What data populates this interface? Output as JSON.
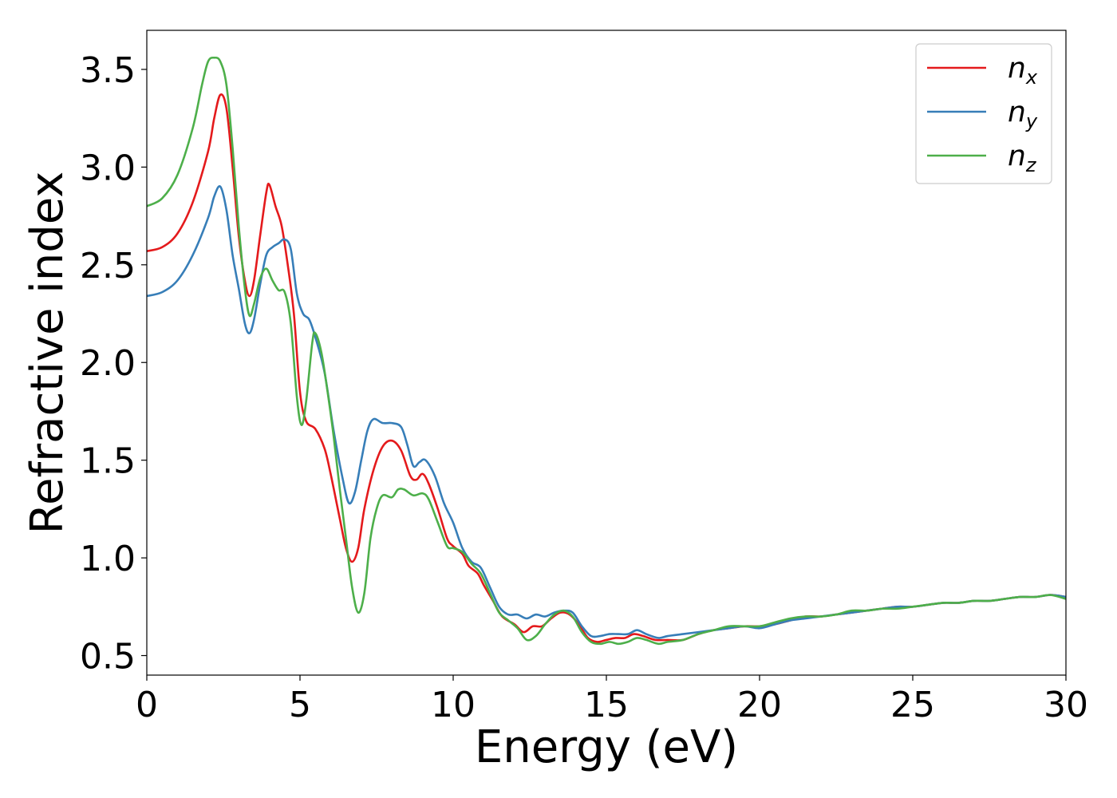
{
  "chart_data": {
    "type": "line",
    "title": "",
    "xlabel": "Energy (eV)",
    "ylabel": "Refractive index",
    "xlim": [
      0,
      30
    ],
    "ylim": [
      0.4,
      3.7
    ],
    "xticks": [
      0,
      5,
      10,
      15,
      20,
      25,
      30
    ],
    "xtick_labels": [
      "0",
      "5",
      "10",
      "15",
      "20",
      "25",
      "30"
    ],
    "yticks": [
      0.5,
      1.0,
      1.5,
      2.0,
      2.5,
      3.0,
      3.5
    ],
    "ytick_labels": [
      "0.5",
      "1.0",
      "1.5",
      "2.0",
      "2.5",
      "3.0",
      "3.5"
    ],
    "grid": false,
    "legend_position": "top-right",
    "series": [
      {
        "name": "n_x",
        "label_main": "n",
        "label_sub": "x",
        "color": "#e41a1c",
        "points": [
          [
            0,
            2.57
          ],
          [
            0.5,
            2.59
          ],
          [
            1.0,
            2.66
          ],
          [
            1.5,
            2.82
          ],
          [
            2.0,
            3.08
          ],
          [
            2.2,
            3.25
          ],
          [
            2.4,
            3.37
          ],
          [
            2.6,
            3.3
          ],
          [
            2.8,
            3.0
          ],
          [
            3.0,
            2.65
          ],
          [
            3.2,
            2.42
          ],
          [
            3.35,
            2.34
          ],
          [
            3.5,
            2.42
          ],
          [
            3.7,
            2.65
          ],
          [
            3.9,
            2.87
          ],
          [
            4.0,
            2.91
          ],
          [
            4.2,
            2.8
          ],
          [
            4.4,
            2.7
          ],
          [
            4.6,
            2.5
          ],
          [
            4.8,
            2.25
          ],
          [
            5.0,
            1.85
          ],
          [
            5.2,
            1.7
          ],
          [
            5.5,
            1.66
          ],
          [
            5.8,
            1.56
          ],
          [
            6.0,
            1.43
          ],
          [
            6.3,
            1.2
          ],
          [
            6.5,
            1.05
          ],
          [
            6.7,
            0.98
          ],
          [
            6.9,
            1.05
          ],
          [
            7.1,
            1.25
          ],
          [
            7.4,
            1.45
          ],
          [
            7.7,
            1.57
          ],
          [
            8.0,
            1.6
          ],
          [
            8.3,
            1.55
          ],
          [
            8.6,
            1.42
          ],
          [
            8.8,
            1.4
          ],
          [
            9.0,
            1.43
          ],
          [
            9.2,
            1.38
          ],
          [
            9.5,
            1.25
          ],
          [
            9.8,
            1.1
          ],
          [
            10.0,
            1.06
          ],
          [
            10.3,
            1.02
          ],
          [
            10.5,
            0.96
          ],
          [
            10.8,
            0.92
          ],
          [
            11.0,
            0.86
          ],
          [
            11.3,
            0.78
          ],
          [
            11.6,
            0.7
          ],
          [
            12.0,
            0.66
          ],
          [
            12.3,
            0.62
          ],
          [
            12.6,
            0.65
          ],
          [
            12.9,
            0.65
          ],
          [
            13.2,
            0.69
          ],
          [
            13.5,
            0.72
          ],
          [
            13.8,
            0.71
          ],
          [
            14.1,
            0.66
          ],
          [
            14.4,
            0.59
          ],
          [
            14.7,
            0.57
          ],
          [
            15.0,
            0.58
          ],
          [
            15.3,
            0.59
          ],
          [
            15.6,
            0.59
          ],
          [
            15.9,
            0.61
          ],
          [
            16.2,
            0.6
          ],
          [
            16.6,
            0.58
          ],
          [
            17.0,
            0.58
          ],
          [
            17.5,
            0.58
          ],
          [
            18.0,
            0.61
          ],
          [
            18.5,
            0.63
          ],
          [
            19.0,
            0.64
          ],
          [
            19.5,
            0.65
          ],
          [
            20.0,
            0.65
          ],
          [
            20.5,
            0.66
          ],
          [
            21.0,
            0.68
          ],
          [
            21.5,
            0.7
          ],
          [
            22.0,
            0.7
          ],
          [
            22.5,
            0.71
          ],
          [
            23.0,
            0.72
          ],
          [
            23.5,
            0.73
          ],
          [
            24.0,
            0.74
          ],
          [
            24.5,
            0.75
          ],
          [
            25.0,
            0.75
          ],
          [
            25.5,
            0.76
          ],
          [
            26.0,
            0.77
          ],
          [
            26.5,
            0.77
          ],
          [
            27.0,
            0.78
          ],
          [
            27.5,
            0.78
          ],
          [
            28.0,
            0.79
          ],
          [
            28.5,
            0.8
          ],
          [
            29.0,
            0.8
          ],
          [
            29.5,
            0.81
          ],
          [
            30.0,
            0.8
          ]
        ]
      },
      {
        "name": "n_y",
        "label_main": "n",
        "label_sub": "y",
        "color": "#377eb8",
        "points": [
          [
            0,
            2.34
          ],
          [
            0.5,
            2.36
          ],
          [
            1.0,
            2.42
          ],
          [
            1.5,
            2.55
          ],
          [
            2.0,
            2.74
          ],
          [
            2.2,
            2.85
          ],
          [
            2.4,
            2.9
          ],
          [
            2.6,
            2.78
          ],
          [
            2.8,
            2.55
          ],
          [
            3.0,
            2.38
          ],
          [
            3.2,
            2.2
          ],
          [
            3.35,
            2.15
          ],
          [
            3.5,
            2.22
          ],
          [
            3.7,
            2.4
          ],
          [
            3.9,
            2.55
          ],
          [
            4.1,
            2.59
          ],
          [
            4.3,
            2.61
          ],
          [
            4.5,
            2.63
          ],
          [
            4.7,
            2.58
          ],
          [
            4.9,
            2.35
          ],
          [
            5.1,
            2.25
          ],
          [
            5.3,
            2.22
          ],
          [
            5.5,
            2.13
          ],
          [
            5.8,
            1.95
          ],
          [
            6.1,
            1.65
          ],
          [
            6.4,
            1.4
          ],
          [
            6.6,
            1.28
          ],
          [
            6.8,
            1.34
          ],
          [
            7.0,
            1.5
          ],
          [
            7.2,
            1.65
          ],
          [
            7.4,
            1.71
          ],
          [
            7.7,
            1.69
          ],
          [
            8.0,
            1.69
          ],
          [
            8.3,
            1.67
          ],
          [
            8.5,
            1.58
          ],
          [
            8.7,
            1.47
          ],
          [
            8.9,
            1.49
          ],
          [
            9.1,
            1.5
          ],
          [
            9.4,
            1.42
          ],
          [
            9.7,
            1.28
          ],
          [
            10.0,
            1.18
          ],
          [
            10.3,
            1.05
          ],
          [
            10.6,
            0.98
          ],
          [
            10.9,
            0.95
          ],
          [
            11.2,
            0.85
          ],
          [
            11.5,
            0.75
          ],
          [
            11.8,
            0.71
          ],
          [
            12.1,
            0.71
          ],
          [
            12.4,
            0.69
          ],
          [
            12.7,
            0.71
          ],
          [
            13.0,
            0.7
          ],
          [
            13.3,
            0.72
          ],
          [
            13.6,
            0.73
          ],
          [
            13.9,
            0.72
          ],
          [
            14.2,
            0.65
          ],
          [
            14.5,
            0.6
          ],
          [
            14.8,
            0.6
          ],
          [
            15.1,
            0.61
          ],
          [
            15.4,
            0.61
          ],
          [
            15.7,
            0.61
          ],
          [
            16.0,
            0.63
          ],
          [
            16.3,
            0.61
          ],
          [
            16.7,
            0.59
          ],
          [
            17.0,
            0.6
          ],
          [
            17.5,
            0.61
          ],
          [
            18.0,
            0.62
          ],
          [
            18.5,
            0.63
          ],
          [
            19.0,
            0.64
          ],
          [
            19.5,
            0.65
          ],
          [
            20.0,
            0.64
          ],
          [
            20.5,
            0.66
          ],
          [
            21.0,
            0.68
          ],
          [
            21.5,
            0.69
          ],
          [
            22.0,
            0.7
          ],
          [
            22.5,
            0.71
          ],
          [
            23.0,
            0.72
          ],
          [
            23.5,
            0.73
          ],
          [
            24.0,
            0.74
          ],
          [
            24.5,
            0.75
          ],
          [
            25.0,
            0.75
          ],
          [
            25.5,
            0.76
          ],
          [
            26.0,
            0.77
          ],
          [
            26.5,
            0.77
          ],
          [
            27.0,
            0.78
          ],
          [
            27.5,
            0.78
          ],
          [
            28.0,
            0.79
          ],
          [
            28.5,
            0.8
          ],
          [
            29.0,
            0.8
          ],
          [
            29.5,
            0.81
          ],
          [
            30.0,
            0.8
          ]
        ]
      },
      {
        "name": "n_z",
        "label_main": "n",
        "label_sub": "z",
        "color": "#4daf4a",
        "points": [
          [
            0,
            2.8
          ],
          [
            0.5,
            2.84
          ],
          [
            1.0,
            2.96
          ],
          [
            1.5,
            3.2
          ],
          [
            1.8,
            3.42
          ],
          [
            2.0,
            3.54
          ],
          [
            2.2,
            3.56
          ],
          [
            2.4,
            3.54
          ],
          [
            2.6,
            3.42
          ],
          [
            2.8,
            3.1
          ],
          [
            3.0,
            2.7
          ],
          [
            3.2,
            2.38
          ],
          [
            3.35,
            2.24
          ],
          [
            3.5,
            2.3
          ],
          [
            3.7,
            2.43
          ],
          [
            3.9,
            2.48
          ],
          [
            4.1,
            2.42
          ],
          [
            4.3,
            2.37
          ],
          [
            4.5,
            2.36
          ],
          [
            4.7,
            2.2
          ],
          [
            4.9,
            1.82
          ],
          [
            5.05,
            1.68
          ],
          [
            5.2,
            1.8
          ],
          [
            5.4,
            2.1
          ],
          [
            5.5,
            2.15
          ],
          [
            5.7,
            2.05
          ],
          [
            5.9,
            1.85
          ],
          [
            6.1,
            1.62
          ],
          [
            6.3,
            1.35
          ],
          [
            6.5,
            1.1
          ],
          [
            6.7,
            0.85
          ],
          [
            6.9,
            0.72
          ],
          [
            7.1,
            0.82
          ],
          [
            7.3,
            1.1
          ],
          [
            7.5,
            1.25
          ],
          [
            7.7,
            1.32
          ],
          [
            8.0,
            1.31
          ],
          [
            8.2,
            1.35
          ],
          [
            8.4,
            1.35
          ],
          [
            8.7,
            1.32
          ],
          [
            9.0,
            1.33
          ],
          [
            9.2,
            1.3
          ],
          [
            9.5,
            1.18
          ],
          [
            9.8,
            1.06
          ],
          [
            10.0,
            1.05
          ],
          [
            10.3,
            1.03
          ],
          [
            10.6,
            0.97
          ],
          [
            10.9,
            0.92
          ],
          [
            11.2,
            0.82
          ],
          [
            11.5,
            0.72
          ],
          [
            11.8,
            0.68
          ],
          [
            12.1,
            0.64
          ],
          [
            12.4,
            0.58
          ],
          [
            12.7,
            0.6
          ],
          [
            13.0,
            0.66
          ],
          [
            13.3,
            0.71
          ],
          [
            13.6,
            0.73
          ],
          [
            13.9,
            0.7
          ],
          [
            14.2,
            0.62
          ],
          [
            14.5,
            0.57
          ],
          [
            14.8,
            0.56
          ],
          [
            15.1,
            0.57
          ],
          [
            15.4,
            0.56
          ],
          [
            15.7,
            0.57
          ],
          [
            16.0,
            0.59
          ],
          [
            16.3,
            0.58
          ],
          [
            16.7,
            0.56
          ],
          [
            17.0,
            0.57
          ],
          [
            17.5,
            0.58
          ],
          [
            18.0,
            0.61
          ],
          [
            18.5,
            0.63
          ],
          [
            19.0,
            0.65
          ],
          [
            19.5,
            0.65
          ],
          [
            20.0,
            0.65
          ],
          [
            20.5,
            0.67
          ],
          [
            21.0,
            0.69
          ],
          [
            21.5,
            0.7
          ],
          [
            22.0,
            0.7
          ],
          [
            22.5,
            0.71
          ],
          [
            23.0,
            0.73
          ],
          [
            23.5,
            0.73
          ],
          [
            24.0,
            0.74
          ],
          [
            24.5,
            0.74
          ],
          [
            25.0,
            0.75
          ],
          [
            25.5,
            0.76
          ],
          [
            26.0,
            0.77
          ],
          [
            26.5,
            0.77
          ],
          [
            27.0,
            0.78
          ],
          [
            27.5,
            0.78
          ],
          [
            28.0,
            0.79
          ],
          [
            28.5,
            0.8
          ],
          [
            29.0,
            0.8
          ],
          [
            29.5,
            0.81
          ],
          [
            30.0,
            0.79
          ]
        ]
      }
    ]
  }
}
